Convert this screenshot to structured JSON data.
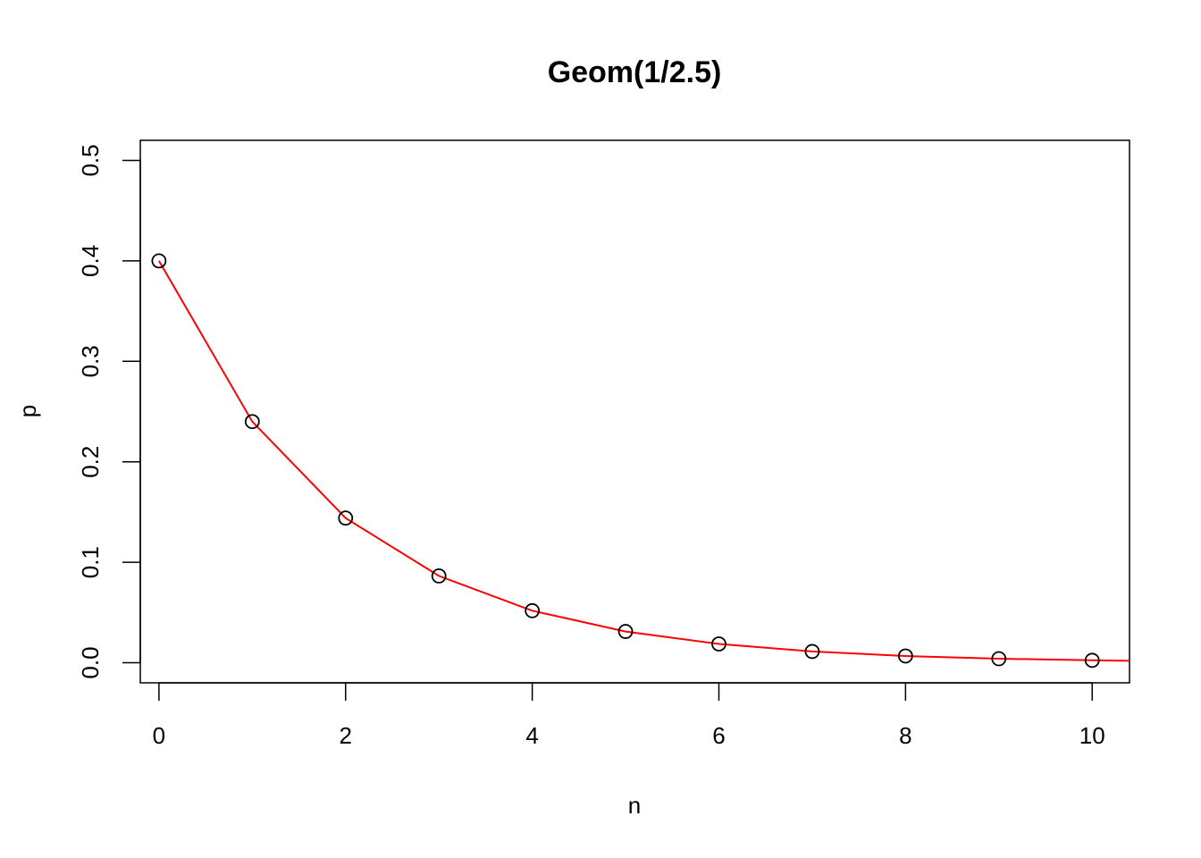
{
  "chart_data": {
    "type": "line",
    "title": "Geom(1/2.5)",
    "xlabel": "n",
    "ylabel": "p",
    "xlim": [
      -0.2,
      10.4
    ],
    "ylim": [
      -0.02,
      0.52
    ],
    "x_ticks": [
      0,
      2,
      4,
      6,
      8,
      10
    ],
    "x_tick_labels": [
      "0",
      "2",
      "4",
      "6",
      "8",
      "10"
    ],
    "y_ticks": [
      0.0,
      0.1,
      0.2,
      0.3,
      0.4,
      0.5
    ],
    "y_tick_labels": [
      "0.0",
      "0.1",
      "0.2",
      "0.3",
      "0.4",
      "0.5"
    ],
    "grid": false,
    "points": {
      "marker": "open-circle",
      "color": "#000000",
      "x": [
        0,
        1,
        2,
        3,
        4,
        5,
        6,
        7,
        8,
        9,
        10
      ],
      "y": [
        0.4,
        0.24,
        0.144,
        0.0864,
        0.0518,
        0.0311,
        0.0187,
        0.0112,
        0.0067,
        0.004,
        0.0024
      ]
    },
    "curve": {
      "color": "#ff0000",
      "x": [
        0,
        1,
        2,
        3,
        4,
        5,
        6,
        7,
        8,
        9,
        10,
        10.4
      ],
      "y": [
        0.4,
        0.24,
        0.144,
        0.0864,
        0.0518,
        0.0311,
        0.0187,
        0.0112,
        0.0067,
        0.004,
        0.0024,
        0.0019
      ]
    }
  }
}
